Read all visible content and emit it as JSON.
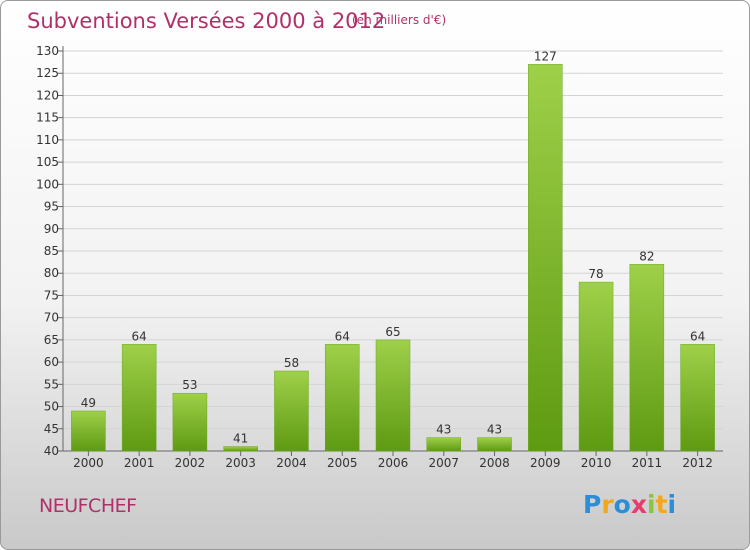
{
  "chart_data": {
    "type": "bar",
    "title": "Subventions Versées 2000 à 2012",
    "subtitle": "(en milliers d'€)",
    "categories": [
      "2000",
      "2001",
      "2002",
      "2003",
      "2004",
      "2005",
      "2006",
      "2007",
      "2008",
      "2009",
      "2010",
      "2011",
      "2012"
    ],
    "values": [
      49,
      64,
      53,
      41,
      58,
      64,
      65,
      43,
      43,
      127,
      78,
      82,
      64
    ],
    "ylim": [
      40,
      130
    ],
    "ytick_step": 5,
    "grid": "horizontal",
    "bar_color": "#7ab82e",
    "title_color": "#b0306a"
  },
  "footer": {
    "commune": "NEUFCHEF",
    "logo": {
      "text": "Proxiti",
      "letters": [
        {
          "ch": "P",
          "color": "#2a8fd8"
        },
        {
          "ch": "r",
          "color": "#f2a81d"
        },
        {
          "ch": "o",
          "color": "#2a8fd8"
        },
        {
          "ch": "x",
          "color": "#e53b6d"
        },
        {
          "ch": "i",
          "color": "#8cc63f"
        },
        {
          "ch": "t",
          "color": "#f2a81d"
        },
        {
          "ch": "i",
          "color": "#2a8fd8"
        }
      ]
    }
  }
}
